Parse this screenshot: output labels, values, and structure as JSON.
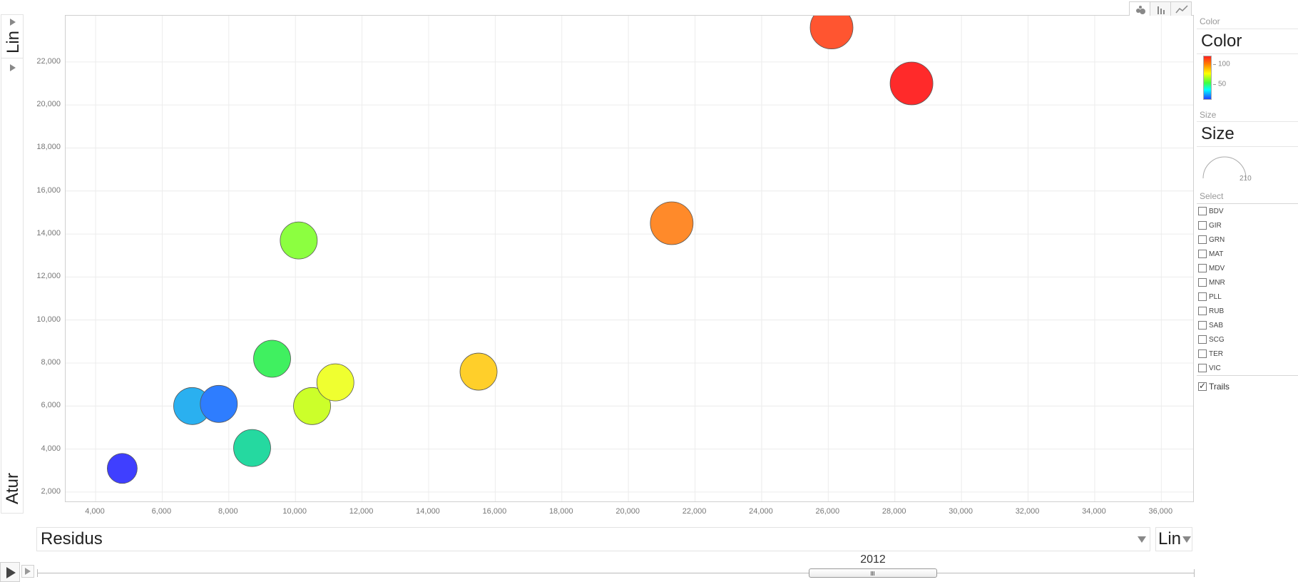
{
  "y_axis": {
    "scale": "Lin",
    "indicator": "Atur"
  },
  "x_axis": {
    "indicator": "Residus",
    "scale": "Lin"
  },
  "chart_toggles": [
    {
      "name": "bubble-chart-icon",
      "active": true
    },
    {
      "name": "bar-chart-icon",
      "active": false
    },
    {
      "name": "line-chart-icon",
      "active": false
    }
  ],
  "side_panel": {
    "color_small": "Color",
    "color_big": "Color",
    "color_ticks": [
      "100",
      "50"
    ],
    "size_small": "Size",
    "size_big": "Size",
    "size_value": "210",
    "select_small": "Select",
    "items": [
      "BDV",
      "GIR",
      "GRN",
      "MAT",
      "MDV",
      "MNR",
      "PLL",
      "RUB",
      "SAB",
      "SCG",
      "TER",
      "VIC"
    ],
    "trails_label": "Trails",
    "trails_checked": true
  },
  "timeline": {
    "year": "2012"
  },
  "chart_data": {
    "type": "scatter",
    "xlabel": "Residus",
    "ylabel": "Atur",
    "xlim": [
      3100,
      37000
    ],
    "ylim": [
      1500,
      24150
    ],
    "x_ticks": [
      4000,
      6000,
      8000,
      10000,
      12000,
      14000,
      16000,
      18000,
      20000,
      22000,
      24000,
      26000,
      28000,
      30000,
      32000,
      34000,
      36000
    ],
    "y_ticks": [
      2000,
      4000,
      6000,
      8000,
      10000,
      12000,
      14000,
      16000,
      18000,
      20000,
      22000
    ],
    "grid": true,
    "points": [
      {
        "x": 4800,
        "y": 3100,
        "color": "#3f3fff"
      },
      {
        "x": 6900,
        "y": 6000,
        "color": "#2ab0f0"
      },
      {
        "x": 7700,
        "y": 6100,
        "color": "#2e7dff"
      },
      {
        "x": 8700,
        "y": 4050,
        "color": "#25d9a0"
      },
      {
        "x": 9300,
        "y": 8200,
        "color": "#40f060"
      },
      {
        "x": 10100,
        "y": 13700,
        "color": "#8cff40"
      },
      {
        "x": 10500,
        "y": 6000,
        "color": "#ccff2a"
      },
      {
        "x": 11200,
        "y": 7100,
        "color": "#efff30"
      },
      {
        "x": 15500,
        "y": 7600,
        "color": "#ffcf2a"
      },
      {
        "x": 21300,
        "y": 14500,
        "color": "#ff8a2a"
      },
      {
        "x": 26100,
        "y": 23600,
        "color": "#ff5530"
      },
      {
        "x": 28500,
        "y": 21000,
        "color": "#ff2a2a"
      }
    ]
  }
}
